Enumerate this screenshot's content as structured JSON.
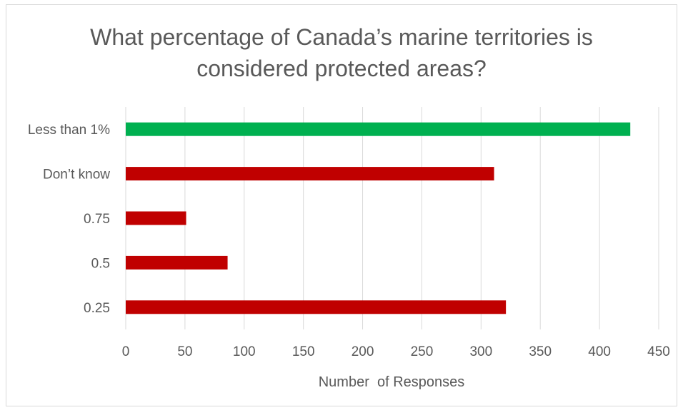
{
  "chart_data": {
    "type": "bar",
    "orientation": "horizontal",
    "title_lines": [
      "What percentage of Canada’s marine territories is",
      "considered protected areas?"
    ],
    "xlabel": "Number  of Responses",
    "ylabel": "",
    "categories": [
      "Less than 1%",
      "Don’t know",
      "0.75",
      "0.5",
      "0.25"
    ],
    "values": [
      426,
      311,
      51,
      86,
      321
    ],
    "bar_colors": [
      "#00b050",
      "#c00000",
      "#c00000",
      "#c00000",
      "#c00000"
    ],
    "xlim": [
      0,
      450
    ],
    "xticks": [
      0,
      50,
      100,
      150,
      200,
      250,
      300,
      350,
      400,
      450
    ],
    "grid": true,
    "legend": "none"
  },
  "colors": {
    "highlight": "#00b050",
    "default": "#c00000",
    "text": "#595959",
    "grid": "#d9d9d9"
  }
}
